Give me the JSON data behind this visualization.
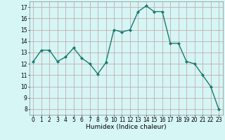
{
  "x": [
    0,
    1,
    2,
    3,
    4,
    5,
    6,
    7,
    8,
    9,
    10,
    11,
    12,
    13,
    14,
    15,
    16,
    17,
    18,
    19,
    20,
    21,
    22,
    23
  ],
  "y": [
    12.2,
    13.2,
    13.2,
    12.2,
    12.6,
    13.4,
    12.5,
    12.0,
    11.1,
    12.1,
    15.0,
    14.8,
    15.0,
    16.6,
    17.1,
    16.6,
    16.6,
    13.8,
    13.8,
    12.2,
    12.0,
    11.0,
    10.0,
    8.0
  ],
  "line_color": "#1a7a6e",
  "marker": "D",
  "marker_size": 2.0,
  "bg_color": "#d6f5f5",
  "grid_color": "#c0a0a0",
  "xlabel": "Humidex (Indice chaleur)",
  "ylim": [
    7.5,
    17.5
  ],
  "xlim": [
    -0.5,
    23.5
  ],
  "yticks": [
    8,
    9,
    10,
    11,
    12,
    13,
    14,
    15,
    16,
    17
  ],
  "xticks": [
    0,
    1,
    2,
    3,
    4,
    5,
    6,
    7,
    8,
    9,
    10,
    11,
    12,
    13,
    14,
    15,
    16,
    17,
    18,
    19,
    20,
    21,
    22,
    23
  ],
  "label_fontsize": 6.5,
  "tick_fontsize": 5.5,
  "linewidth": 1.0
}
